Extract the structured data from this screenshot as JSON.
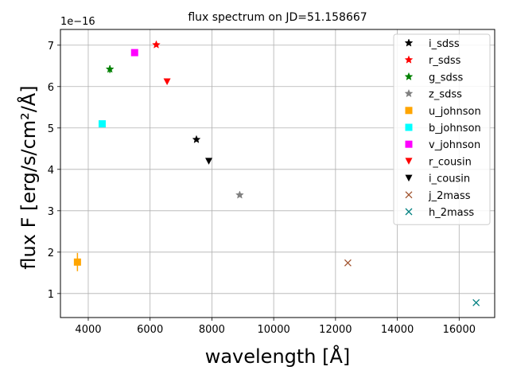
{
  "chart_data": {
    "type": "scatter",
    "title": "flux spectrum on JD=51.158667",
    "xlabel": "wavelength [Å]",
    "ylabel": "flux F [erg/s/cm²/Å]",
    "y_offset_label": "1e−16",
    "xlim": [
      3100,
      17150
    ],
    "ylim": [
      0.42,
      7.38
    ],
    "x_ticks": [
      4000,
      6000,
      8000,
      10000,
      12000,
      14000,
      16000
    ],
    "y_ticks": [
      1,
      2,
      3,
      4,
      5,
      6,
      7
    ],
    "grid": true,
    "legend_position": "top-right",
    "series": [
      {
        "name": "i_sdss",
        "marker": "star",
        "color": "#000000",
        "x": 7500,
        "y": 4.72,
        "yerr": 0
      },
      {
        "name": "r_sdss",
        "marker": "star",
        "color": "#ff0000",
        "x": 6200,
        "y": 7.01,
        "yerr": 0
      },
      {
        "name": "g_sdss",
        "marker": "star",
        "color": "#008000",
        "x": 4700,
        "y": 6.42,
        "yerr": 0.09
      },
      {
        "name": "z_sdss",
        "marker": "star",
        "color": "#808080",
        "x": 8900,
        "y": 3.38,
        "yerr": 0
      },
      {
        "name": "u_johnson",
        "marker": "square",
        "color": "#ffa500",
        "x": 3650,
        "y": 1.76,
        "yerr": 0.22
      },
      {
        "name": "b_johnson",
        "marker": "square",
        "color": "#00ffff",
        "x": 4450,
        "y": 5.1,
        "yerr": 0
      },
      {
        "name": "v_johnson",
        "marker": "square",
        "color": "#ff00ff",
        "x": 5500,
        "y": 6.82,
        "yerr": 0
      },
      {
        "name": "r_cousin",
        "marker": "triangle-down",
        "color": "#ff0000",
        "x": 6550,
        "y": 6.12,
        "yerr": 0
      },
      {
        "name": "i_cousin",
        "marker": "triangle-down",
        "color": "#000000",
        "x": 7900,
        "y": 4.2,
        "yerr": 0
      },
      {
        "name": "j_2mass",
        "marker": "x",
        "color": "#a0522d",
        "x": 12400,
        "y": 1.74,
        "yerr": 0
      },
      {
        "name": "h_2mass",
        "marker": "x",
        "color": "#008080",
        "x": 16550,
        "y": 0.78,
        "yerr": 0
      }
    ]
  }
}
